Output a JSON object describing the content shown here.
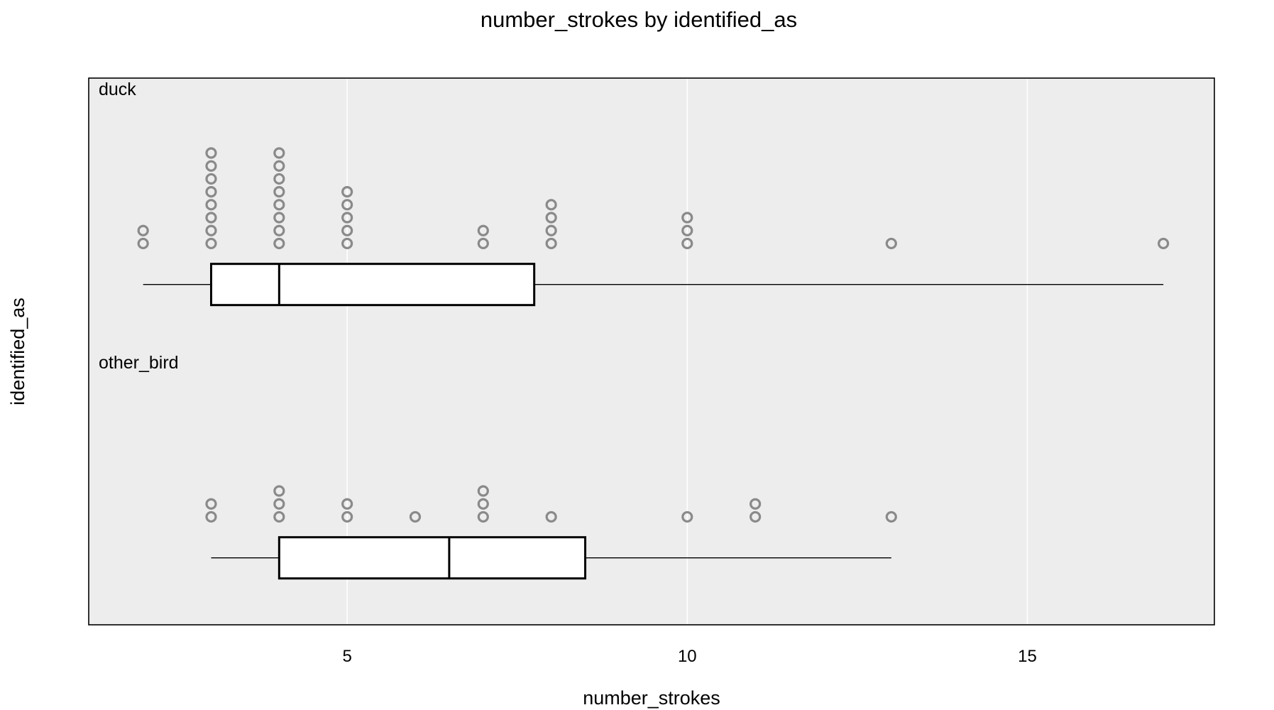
{
  "chart_data": {
    "type": "box",
    "title": "number_strokes by identified_as",
    "xlabel": "number_strokes",
    "ylabel": "identified_as",
    "xlim": [
      1.2,
      17.75
    ],
    "xticks": [
      5,
      10,
      15
    ],
    "grid": true,
    "orientation": "horizontal",
    "colors": {
      "panel_background": "#ededed",
      "gridline": "#ffffff",
      "box_fill": "#ffffff",
      "box_stroke": "#000000",
      "points": "#8a8a8a"
    },
    "groups": [
      {
        "name": "duck",
        "box": {
          "min": 2,
          "q1": 3,
          "median": 4,
          "q3": 7.75,
          "max": 17
        },
        "dots": [
          {
            "x": 2,
            "count": 2
          },
          {
            "x": 3,
            "count": 8
          },
          {
            "x": 4,
            "count": 8
          },
          {
            "x": 5,
            "count": 5
          },
          {
            "x": 7,
            "count": 2
          },
          {
            "x": 8,
            "count": 4
          },
          {
            "x": 10,
            "count": 3
          },
          {
            "x": 13,
            "count": 1
          },
          {
            "x": 17,
            "count": 1
          }
        ]
      },
      {
        "name": "other_bird",
        "box": {
          "min": 3,
          "q1": 4,
          "median": 6.5,
          "q3": 8.5,
          "max": 13
        },
        "dots": [
          {
            "x": 3,
            "count": 2
          },
          {
            "x": 4,
            "count": 3
          },
          {
            "x": 5,
            "count": 2
          },
          {
            "x": 6,
            "count": 1
          },
          {
            "x": 7,
            "count": 3
          },
          {
            "x": 8,
            "count": 1
          },
          {
            "x": 10,
            "count": 1
          },
          {
            "x": 11,
            "count": 2
          },
          {
            "x": 13,
            "count": 1
          }
        ]
      }
    ]
  }
}
